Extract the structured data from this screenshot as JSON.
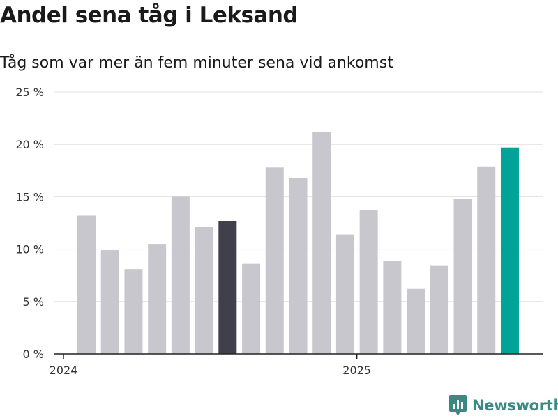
{
  "title": "Andel sena tåg i Leksand",
  "subtitle": "Tåg som var mer än fem minuter sena vid ankomst",
  "brand": {
    "name": "Newsworthy",
    "icon": "newsworthy-logo-icon",
    "color": "#3a8a83"
  },
  "colors": {
    "bar": "#c8c7ce",
    "highlight_dark": "#403f4c",
    "highlight_latest": "#00a398",
    "grid": "#e0e0e0",
    "axis": "#222222"
  },
  "chart_data": {
    "type": "bar",
    "title": "Andel sena tåg i Leksand",
    "subtitle": "Tåg som var mer än fem minuter sena vid ankomst",
    "xlabel": "",
    "ylabel": "",
    "ylim": [
      0,
      25
    ],
    "yticks": [
      0,
      5,
      10,
      15,
      20,
      25
    ],
    "ytick_labels": [
      "0 %",
      "5 %",
      "10 %",
      "15 %",
      "20 %",
      "25 %"
    ],
    "xtick_labels": [
      {
        "label": "2024",
        "at_index": 0
      },
      {
        "label": "2025",
        "at_index": 12
      }
    ],
    "grid": true,
    "values": [
      13.2,
      9.9,
      8.1,
      10.5,
      15.0,
      12.1,
      12.7,
      8.6,
      17.8,
      16.8,
      21.2,
      11.4,
      13.7,
      8.9,
      6.2,
      8.4,
      14.8,
      17.9,
      19.7
    ],
    "highlights": [
      {
        "index": 6,
        "color": "#403f4c"
      },
      {
        "index": 18,
        "color": "#00a398"
      }
    ]
  }
}
